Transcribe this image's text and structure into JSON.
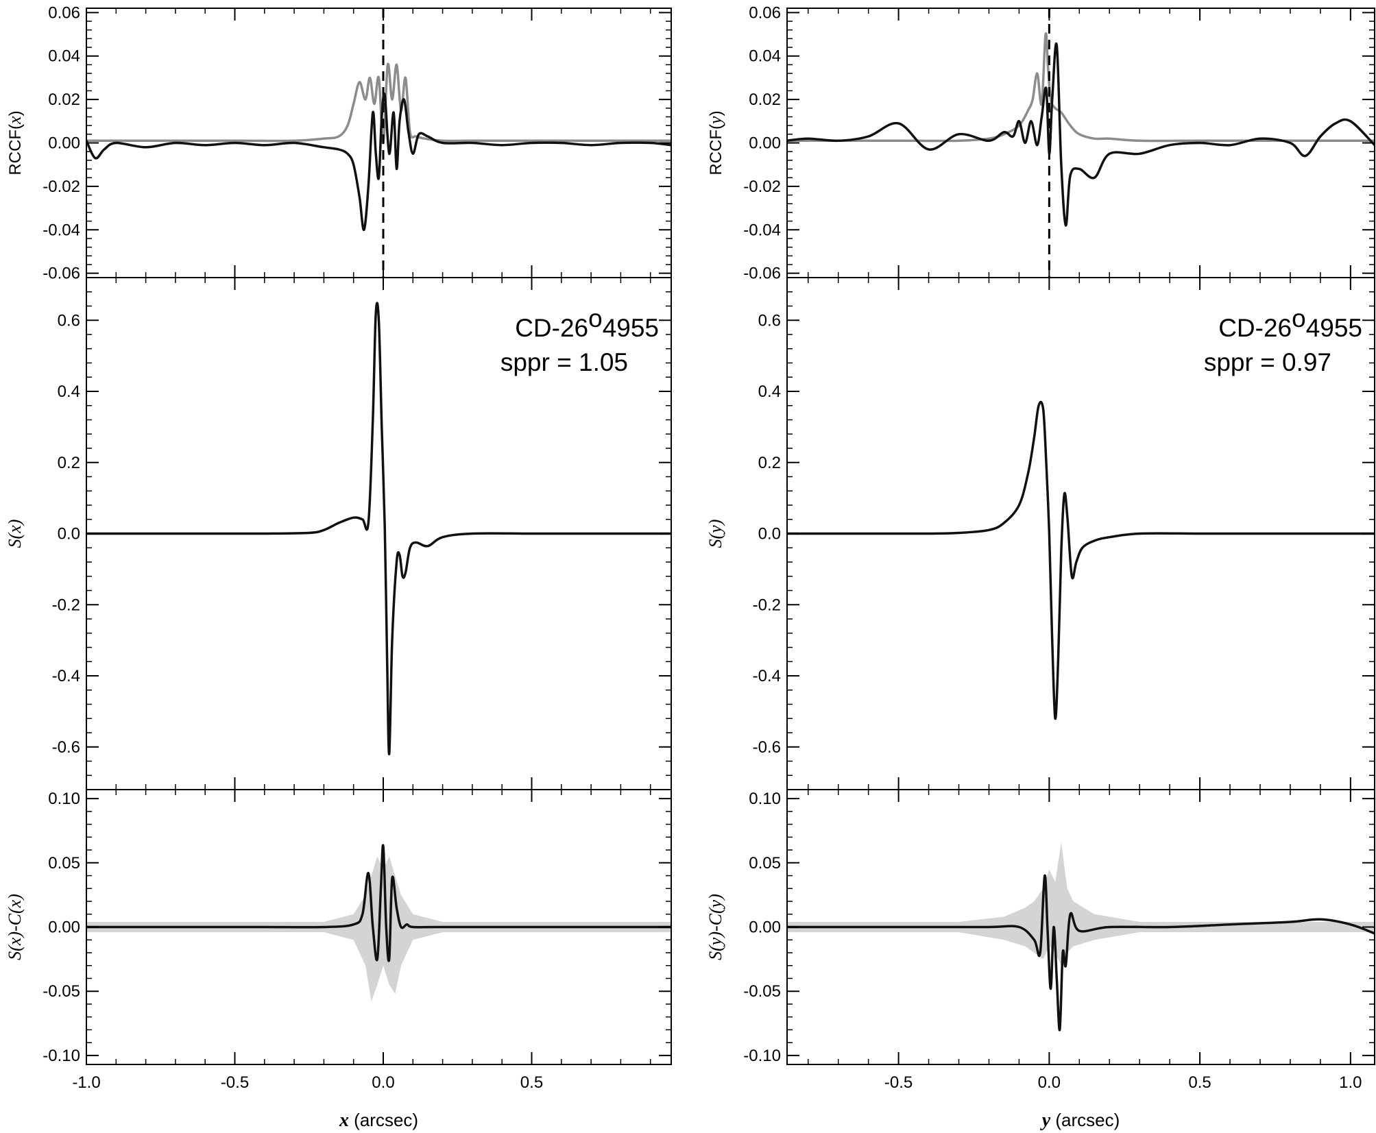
{
  "colors": {
    "observed": "#111111",
    "model": "#8c8c8c",
    "band": "#d4d4d4",
    "axes": "#000000"
  },
  "chart_data": [
    {
      "id": "left",
      "type": "line",
      "xlabel": {
        "var": "x",
        "unit": " (arcsec)"
      },
      "xlim": [
        -1.0,
        0.97
      ],
      "xticks": [
        -1.0,
        -0.5,
        0.0,
        0.5
      ],
      "xtick_labels": [
        "-1.0",
        "-0.5",
        "0.0",
        "0.5"
      ],
      "vline_x": 0.0,
      "annotation": {
        "object": "CD-26",
        "degree": "o",
        "object_suffix": "4955",
        "sppr": "sppr = 1.05"
      },
      "panels": {
        "rccf": {
          "ylabel": {
            "prefix": "RCCF(",
            "var": "x",
            "suffix": ")"
          },
          "ylim": [
            -0.062,
            0.062
          ],
          "yticks": [
            -0.06,
            -0.04,
            -0.02,
            0.0,
            0.02,
            0.04,
            0.06
          ],
          "ytick_labels": [
            "-0.06",
            "-0.04",
            "-0.02",
            "0.00",
            "0.02",
            "0.04",
            "0.06"
          ],
          "observed": {
            "x": [
              -1.0,
              -0.97,
              -0.94,
              -0.9,
              -0.8,
              -0.7,
              -0.6,
              -0.5,
              -0.4,
              -0.3,
              -0.2,
              -0.15,
              -0.12,
              -0.1,
              -0.08,
              -0.065,
              -0.05,
              -0.035,
              -0.025,
              -0.015,
              -0.005,
              0.005,
              0.02,
              0.035,
              0.045,
              0.055,
              0.07,
              0.085,
              0.1,
              0.12,
              0.15,
              0.2,
              0.3,
              0.4,
              0.5,
              0.6,
              0.7,
              0.8,
              0.9,
              0.97
            ],
            "y": [
              0.001,
              -0.007,
              -0.003,
              0.0,
              -0.002,
              0.0,
              -0.001,
              0.0,
              -0.001,
              0.0,
              -0.002,
              -0.003,
              -0.005,
              -0.01,
              -0.025,
              -0.04,
              -0.02,
              0.014,
              -0.005,
              -0.016,
              0.012,
              0.022,
              -0.005,
              0.014,
              -0.012,
              0.01,
              0.02,
              0.005,
              -0.005,
              0.004,
              0.003,
              0.0,
              0.0,
              -0.001,
              0.0,
              0.0,
              -0.001,
              0.0,
              0.0,
              -0.001
            ]
          },
          "model": {
            "x": [
              -1.0,
              -0.5,
              -0.3,
              -0.2,
              -0.15,
              -0.12,
              -0.1,
              -0.08,
              -0.06,
              -0.045,
              -0.03,
              -0.015,
              0.0,
              0.015,
              0.03,
              0.045,
              0.06,
              0.075,
              0.09,
              0.11,
              0.14,
              0.2,
              0.3,
              0.5,
              0.97
            ],
            "y": [
              0.001,
              0.001,
              0.001,
              0.002,
              0.003,
              0.008,
              0.018,
              0.028,
              0.02,
              0.03,
              0.018,
              0.03,
              0.0,
              0.036,
              0.02,
              0.036,
              0.015,
              0.03,
              0.005,
              0.003,
              0.002,
              0.001,
              0.001,
              0.001,
              0.001
            ]
          }
        },
        "signal": {
          "ylabel": {
            "prefix": "",
            "var": "S",
            "open": "(",
            "var2": "x",
            "suffix": ")"
          },
          "ylim": [
            -0.72,
            0.72
          ],
          "yticks": [
            -0.6,
            -0.4,
            -0.2,
            0.0,
            0.2,
            0.4,
            0.6
          ],
          "ytick_labels": [
            "-0.6",
            "-0.4",
            "-0.2",
            "0.0",
            "0.2",
            "0.4",
            "0.6"
          ],
          "observed": {
            "x": [
              -1.0,
              -0.8,
              -0.6,
              -0.4,
              -0.25,
              -0.2,
              -0.15,
              -0.1,
              -0.07,
              -0.05,
              -0.035,
              -0.025,
              -0.015,
              -0.005,
              0.005,
              0.013,
              0.02,
              0.03,
              0.045,
              0.055,
              0.065,
              0.075,
              0.09,
              0.11,
              0.15,
              0.2,
              0.3,
              0.5,
              0.7,
              0.97
            ],
            "y": [
              0.0,
              0.0,
              0.0,
              0.0,
              0.002,
              0.01,
              0.03,
              0.045,
              0.04,
              0.03,
              0.32,
              0.62,
              0.6,
              0.3,
              0.02,
              -0.35,
              -0.62,
              -0.3,
              -0.08,
              -0.06,
              -0.12,
              -0.11,
              -0.04,
              -0.025,
              -0.035,
              -0.01,
              0.0,
              0.0,
              0.0,
              0.0
            ]
          }
        },
        "residual": {
          "ylabel": {
            "prefix": "",
            "var": "S",
            "open": "(",
            "var2": "x",
            "mid": ")-",
            "var3": "C",
            "open2": "(",
            "var4": "x",
            "suffix": ")"
          },
          "ylim": [
            -0.107,
            0.107
          ],
          "yticks": [
            -0.1,
            -0.05,
            0.0,
            0.05,
            0.1
          ],
          "ytick_labels": [
            "-0.10",
            "-0.05",
            "0.00",
            "0.05",
            "0.10"
          ],
          "observed": {
            "x": [
              -1.0,
              -0.8,
              -0.6,
              -0.4,
              -0.2,
              -0.1,
              -0.07,
              -0.05,
              -0.035,
              -0.02,
              -0.008,
              0.0,
              0.01,
              0.02,
              0.03,
              0.045,
              0.06,
              0.08,
              0.1,
              0.2,
              0.4,
              0.6,
              0.8,
              0.97
            ],
            "y": [
              0.0,
              0.0,
              0.0,
              0.0,
              0.0,
              0.002,
              0.01,
              0.042,
              0.0,
              -0.025,
              0.03,
              0.063,
              0.0,
              -0.025,
              0.038,
              0.015,
              0.0,
              0.002,
              0.0,
              0.0,
              0.0,
              0.0,
              0.0,
              0.0
            ]
          },
          "band": {
            "x": [
              -1.0,
              -0.2,
              -0.1,
              -0.06,
              -0.04,
              -0.02,
              0.0,
              0.02,
              0.04,
              0.06,
              0.1,
              0.2,
              0.97
            ],
            "upper": [
              0.004,
              0.004,
              0.01,
              0.025,
              0.04,
              0.055,
              0.045,
              0.055,
              0.04,
              0.025,
              0.01,
              0.004,
              0.004
            ],
            "lower": [
              -0.004,
              -0.004,
              -0.01,
              -0.03,
              -0.058,
              -0.045,
              -0.03,
              -0.045,
              -0.052,
              -0.03,
              -0.01,
              -0.004,
              -0.004
            ]
          }
        }
      }
    },
    {
      "id": "right",
      "type": "line",
      "xlabel": {
        "var": "y",
        "unit": " (arcsec)"
      },
      "xlim": [
        -0.87,
        1.08
      ],
      "xticks": [
        -0.5,
        0.0,
        0.5,
        1.0
      ],
      "xtick_labels": [
        "-0.5",
        "0.0",
        "0.5",
        "1.0"
      ],
      "vline_x": 0.0,
      "annotation": {
        "object": "CD-26",
        "degree": "o",
        "object_suffix": "4955",
        "sppr": "sppr = 0.97"
      },
      "panels": {
        "rccf": {
          "ylabel": {
            "prefix": "RCCF(",
            "var": "y",
            "suffix": ")"
          },
          "ylim": [
            -0.062,
            0.062
          ],
          "yticks": [
            -0.06,
            -0.04,
            -0.02,
            0.0,
            0.02,
            0.04,
            0.06
          ],
          "ytick_labels": [
            "-0.06",
            "-0.04",
            "-0.02",
            "0.00",
            "0.02",
            "0.04",
            "0.06"
          ],
          "observed": {
            "x": [
              -0.87,
              -0.8,
              -0.7,
              -0.6,
              -0.5,
              -0.4,
              -0.3,
              -0.2,
              -0.15,
              -0.12,
              -0.1,
              -0.08,
              -0.06,
              -0.04,
              -0.025,
              -0.01,
              0.0,
              0.01,
              0.025,
              0.04,
              0.055,
              0.07,
              0.1,
              0.15,
              0.2,
              0.3,
              0.4,
              0.5,
              0.6,
              0.7,
              0.8,
              0.85,
              0.9,
              0.95,
              1.0,
              1.08
            ],
            "y": [
              0.001,
              0.002,
              0.001,
              0.003,
              0.009,
              -0.003,
              0.004,
              0.001,
              0.005,
              0.003,
              0.01,
              0.0,
              0.01,
              -0.001,
              0.012,
              0.025,
              -0.005,
              0.02,
              0.045,
              -0.01,
              -0.038,
              -0.015,
              -0.012,
              -0.016,
              -0.005,
              -0.005,
              -0.001,
              0.0,
              -0.001,
              0.002,
              0.0,
              -0.006,
              0.003,
              0.009,
              0.01,
              -0.001
            ]
          },
          "model": {
            "x": [
              -0.87,
              -0.5,
              -0.3,
              -0.2,
              -0.15,
              -0.1,
              -0.07,
              -0.055,
              -0.04,
              -0.025,
              -0.012,
              -0.004,
              0.005,
              0.02,
              0.04,
              0.07,
              0.1,
              0.15,
              0.2,
              0.3,
              0.5,
              0.7,
              1.08
            ],
            "y": [
              0.001,
              0.001,
              0.001,
              0.002,
              0.004,
              0.008,
              0.015,
              0.02,
              0.032,
              0.018,
              0.05,
              0.035,
              0.02,
              0.016,
              0.014,
              0.008,
              0.004,
              0.002,
              0.002,
              0.001,
              0.001,
              0.001,
              0.001
            ]
          }
        },
        "signal": {
          "ylabel": {
            "prefix": "",
            "var": "S",
            "open": "(",
            "var2": "y",
            "suffix": ")"
          },
          "ylim": [
            -0.72,
            0.72
          ],
          "yticks": [
            -0.6,
            -0.4,
            -0.2,
            0.0,
            0.2,
            0.4,
            0.6
          ],
          "ytick_labels": [
            "-0.6",
            "-0.4",
            "-0.2",
            "0.0",
            "0.2",
            "0.4",
            "0.6"
          ],
          "observed": {
            "x": [
              -0.87,
              -0.6,
              -0.4,
              -0.3,
              -0.2,
              -0.15,
              -0.1,
              -0.07,
              -0.05,
              -0.035,
              -0.02,
              -0.01,
              0.0,
              0.01,
              0.02,
              0.03,
              0.04,
              0.05,
              0.06,
              0.075,
              0.09,
              0.11,
              0.15,
              0.2,
              0.3,
              0.5,
              0.7,
              1.08
            ],
            "y": [
              0.0,
              0.0,
              0.0,
              0.002,
              0.01,
              0.03,
              0.08,
              0.17,
              0.27,
              0.36,
              0.35,
              0.2,
              0.0,
              -0.3,
              -0.52,
              -0.35,
              -0.05,
              0.11,
              0.05,
              -0.12,
              -0.08,
              -0.04,
              -0.02,
              -0.01,
              0.0,
              0.0,
              0.0,
              0.0
            ]
          }
        },
        "residual": {
          "ylabel": {
            "prefix": "",
            "var": "S",
            "open": "(",
            "var2": "y",
            "mid": ")-",
            "var3": "C",
            "open2": "(",
            "var4": "y",
            "suffix": ")"
          },
          "ylim": [
            -0.107,
            0.107
          ],
          "yticks": [
            -0.1,
            -0.05,
            0.0,
            0.05,
            0.1
          ],
          "ytick_labels": [
            "-0.10",
            "-0.05",
            "0.00",
            "0.05",
            "0.10"
          ],
          "observed": {
            "x": [
              -0.87,
              -0.6,
              -0.4,
              -0.2,
              -0.1,
              -0.05,
              -0.03,
              -0.015,
              -0.005,
              0.005,
              0.015,
              0.025,
              0.035,
              0.045,
              0.055,
              0.07,
              0.1,
              0.2,
              0.4,
              0.6,
              0.8,
              0.9,
              1.0,
              1.08
            ],
            "y": [
              0.0,
              0.0,
              0.0,
              0.0,
              0.0,
              -0.01,
              -0.02,
              0.04,
              -0.005,
              -0.048,
              0.0,
              -0.04,
              -0.08,
              -0.02,
              -0.03,
              0.01,
              -0.003,
              0.0,
              0.0,
              0.002,
              0.004,
              0.006,
              0.002,
              -0.005
            ]
          },
          "band": {
            "x": [
              -0.87,
              -0.3,
              -0.15,
              -0.08,
              -0.05,
              -0.02,
              0.0,
              0.02,
              0.04,
              0.06,
              0.08,
              0.15,
              0.3,
              1.08
            ],
            "upper": [
              0.004,
              0.004,
              0.008,
              0.015,
              0.02,
              0.03,
              0.045,
              0.035,
              0.066,
              0.03,
              0.02,
              0.01,
              0.004,
              0.004
            ],
            "lower": [
              -0.004,
              -0.004,
              -0.01,
              -0.015,
              -0.02,
              -0.025,
              -0.015,
              -0.02,
              -0.03,
              -0.02,
              -0.015,
              -0.01,
              -0.004,
              -0.004
            ]
          }
        }
      }
    }
  ]
}
